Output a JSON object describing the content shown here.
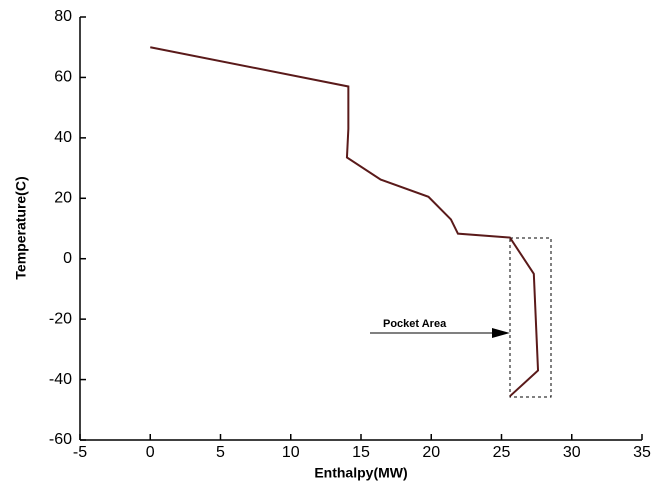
{
  "chart_data": {
    "type": "line",
    "x_label": "Enthalpy(MW)",
    "y_label": "Temperature(C)",
    "x": [
      0,
      14.1,
      14.1,
      14,
      16.4,
      19.8,
      21.4,
      21.9,
      25.6,
      27.3,
      27.6,
      25.6
    ],
    "values": [
      70,
      57,
      43,
      33.5,
      26.2,
      20.5,
      13,
      8.3,
      7,
      -5,
      -37,
      -45.5
    ],
    "color": "#5a1a1a",
    "xlim": [
      -5,
      35
    ],
    "xticks": [
      -5,
      0,
      5,
      10,
      15,
      20,
      25,
      30,
      35
    ],
    "ylim": [
      -60,
      80
    ],
    "yticks": [
      -60,
      -40,
      -20,
      0,
      20,
      40,
      60,
      80
    ],
    "annotation": "Pocket Area"
  }
}
